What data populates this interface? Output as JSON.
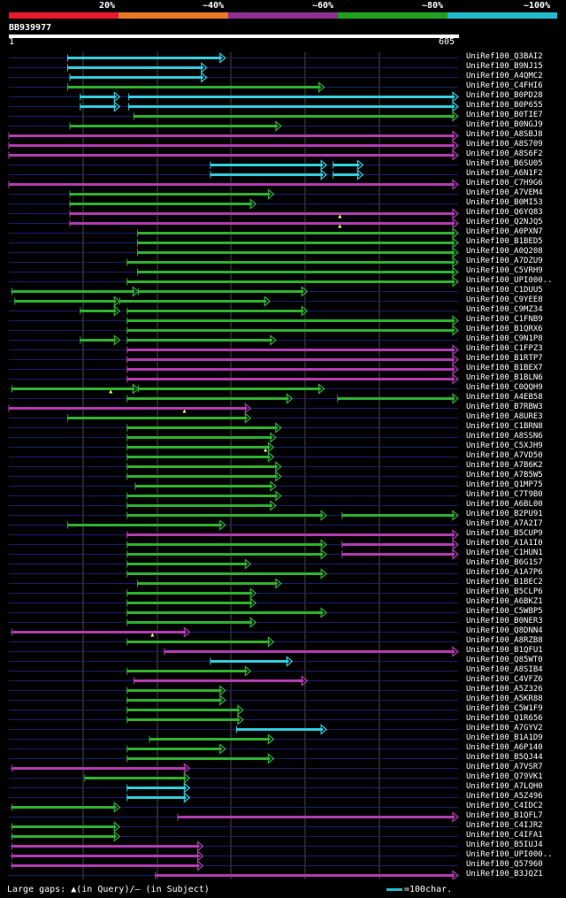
{
  "query_id": "BB939977",
  "legend": {
    "labels": [
      "20%",
      "~40%",
      "~60%",
      "~80%",
      "~100%"
    ],
    "colors": [
      "#e8192c",
      "#e87722",
      "#8f2f8f",
      "#20a020",
      "#22bbcc"
    ]
  },
  "ruler": {
    "start": "1",
    "end": "605"
  },
  "footer": {
    "gaps_text": "Large gaps: ▲(in Query)/— (in Subject)",
    "scale_text": "=100char."
  },
  "colors": {
    "green": "#30b030",
    "cyan": "#33ccdd",
    "magenta": "#b03cb0",
    "navy": "#1a1f6a",
    "grid": "#4a4a4a"
  },
  "chart_data": {
    "type": "alignment",
    "query_length": 605,
    "rows": [
      {
        "label": "UniRef100_Q3BAI2",
        "color": "cyan",
        "segs": [
          [
            80,
            292
          ]
        ]
      },
      {
        "label": "UniRef100_B9NJ15",
        "color": "cyan",
        "segs": [
          [
            80,
            267
          ]
        ]
      },
      {
        "label": "UniRef100_A4QMC2",
        "color": "cyan",
        "segs": [
          [
            83,
            267
          ]
        ]
      },
      {
        "label": "UniRef100_C4FHI6",
        "color": "green",
        "segs": [
          [
            80,
            425
          ]
        ]
      },
      {
        "label": "UniRef100_B0PD28",
        "color": "cyan",
        "segs": [
          [
            97,
            150
          ],
          [
            162,
            605
          ]
        ]
      },
      {
        "label": "UniRef100_B0P655",
        "color": "cyan",
        "segs": [
          [
            97,
            150
          ],
          [
            162,
            605
          ]
        ]
      },
      {
        "label": "UniRef100_B0TIE7",
        "color": "green",
        "segs": [
          [
            169,
            605
          ]
        ]
      },
      {
        "label": "UniRef100_B0NGJ9",
        "color": "green",
        "segs": [
          [
            83,
            367
          ]
        ]
      },
      {
        "label": "UniRef100_A8SBJ8",
        "color": "magenta",
        "segs": [
          [
            1,
            605
          ]
        ]
      },
      {
        "label": "UniRef100_A8S709",
        "color": "magenta",
        "segs": [
          [
            1,
            605
          ]
        ]
      },
      {
        "label": "UniRef100_A8S6F2",
        "color": "magenta",
        "segs": [
          [
            1,
            605
          ]
        ]
      },
      {
        "label": "UniRef100_B6SU05",
        "color": "cyan",
        "segs": [
          [
            272,
            428
          ],
          [
            437,
            477
          ]
        ]
      },
      {
        "label": "UniRef100_A6N1F2",
        "color": "cyan",
        "segs": [
          [
            272,
            428
          ],
          [
            437,
            477
          ]
        ]
      },
      {
        "label": "UniRef100_C7H9G6",
        "color": "magenta",
        "segs": [
          [
            1,
            605
          ]
        ]
      },
      {
        "label": "UniRef100_A7VEM4",
        "color": "green",
        "segs": [
          [
            83,
            357
          ]
        ]
      },
      {
        "label": "UniRef100_B0MI53",
        "color": "green",
        "segs": [
          [
            83,
            333
          ]
        ]
      },
      {
        "label": "UniRef100_Q6YQ83",
        "color": "magenta",
        "segs": [
          [
            83,
            605
          ]
        ],
        "gap": 446
      },
      {
        "label": "UniRef100_Q2NJQ5",
        "color": "magenta",
        "segs": [
          [
            83,
            605
          ]
        ],
        "gap": 446
      },
      {
        "label": "UniRef100_A0PXN7",
        "color": "green",
        "segs": [
          [
            174,
            605
          ]
        ]
      },
      {
        "label": "UniRef100_B1BED5",
        "color": "green",
        "segs": [
          [
            174,
            605
          ]
        ]
      },
      {
        "label": "UniRef100_A0Q208",
        "color": "green",
        "segs": [
          [
            174,
            605
          ]
        ]
      },
      {
        "label": "UniRef100_A7DZU9",
        "color": "green",
        "segs": [
          [
            160,
            605
          ]
        ]
      },
      {
        "label": "UniRef100_C5VRH9",
        "color": "green",
        "segs": [
          [
            174,
            605
          ]
        ]
      },
      {
        "label": "UniRef100_UPI000..",
        "color": "green",
        "segs": [
          [
            160,
            605
          ]
        ]
      },
      {
        "label": "UniRef100_C1DUU5",
        "color": "green",
        "segs": [
          [
            5,
            175
          ],
          [
            175,
            402
          ]
        ]
      },
      {
        "label": "UniRef100_C9YEE8",
        "color": "green",
        "segs": [
          [
            9,
            150
          ],
          [
            150,
            352
          ]
        ]
      },
      {
        "label": "UniRef100_C9MZ34",
        "color": "green",
        "segs": [
          [
            97,
            150
          ],
          [
            160,
            402
          ]
        ]
      },
      {
        "label": "UniRef100_C1FNB9",
        "color": "green",
        "segs": [
          [
            160,
            605
          ]
        ]
      },
      {
        "label": "UniRef100_B1QRX6",
        "color": "green",
        "segs": [
          [
            160,
            605
          ]
        ]
      },
      {
        "label": "UniRef100_C9N1P8",
        "color": "green",
        "segs": [
          [
            97,
            150
          ],
          [
            160,
            360
          ]
        ]
      },
      {
        "label": "UniRef100_C1FPZ3",
        "color": "magenta",
        "segs": [
          [
            160,
            605
          ]
        ]
      },
      {
        "label": "UniRef100_B1RTP7",
        "color": "magenta",
        "segs": [
          [
            160,
            605
          ]
        ]
      },
      {
        "label": "UniRef100_B1BEX7",
        "color": "magenta",
        "segs": [
          [
            160,
            605
          ]
        ]
      },
      {
        "label": "UniRef100_B1BLN6",
        "color": "magenta",
        "segs": [
          [
            160,
            605
          ]
        ]
      },
      {
        "label": "UniRef100_C0QQH9",
        "color": "green",
        "segs": [
          [
            5,
            175
          ],
          [
            175,
            425
          ]
        ],
        "gap": 138
      },
      {
        "label": "UniRef100_A4EB58",
        "color": "green",
        "segs": [
          [
            160,
            382
          ],
          [
            443,
            605
          ]
        ]
      },
      {
        "label": "UniRef100_B7RBW3",
        "color": "magenta",
        "segs": [
          [
            1,
            326
          ]
        ],
        "gap": 237
      },
      {
        "label": "UniRef100_A8URE3",
        "color": "green",
        "segs": [
          [
            80,
            326
          ]
        ]
      },
      {
        "label": "UniRef100_C1BRN8",
        "color": "green",
        "segs": [
          [
            160,
            367
          ]
        ]
      },
      {
        "label": "UniRef100_A8SSN6",
        "color": "green",
        "segs": [
          [
            160,
            360
          ]
        ]
      },
      {
        "label": "UniRef100_C5XJH9",
        "color": "green",
        "segs": [
          [
            160,
            357
          ]
        ],
        "gap": 346
      },
      {
        "label": "UniRef100_A7VD50",
        "color": "green",
        "segs": [
          [
            160,
            357
          ]
        ]
      },
      {
        "label": "UniRef100_A7B6K2",
        "color": "green",
        "segs": [
          [
            160,
            367
          ]
        ]
      },
      {
        "label": "UniRef100_A7B5W5",
        "color": "green",
        "segs": [
          [
            160,
            367
          ]
        ]
      },
      {
        "label": "UniRef100_Q1MP75",
        "color": "green",
        "segs": [
          [
            171,
            360
          ]
        ]
      },
      {
        "label": "UniRef100_C7T9B0",
        "color": "green",
        "segs": [
          [
            160,
            367
          ]
        ]
      },
      {
        "label": "UniRef100_A6BL00",
        "color": "green",
        "segs": [
          [
            160,
            360
          ]
        ]
      },
      {
        "label": "UniRef100_B2PU91",
        "color": "green",
        "segs": [
          [
            160,
            428
          ],
          [
            449,
            605
          ]
        ]
      },
      {
        "label": "UniRef100_A7A2I7",
        "color": "green",
        "segs": [
          [
            80,
            292
          ]
        ]
      },
      {
        "label": "UniRef100_B5CUP9",
        "color": "magenta",
        "segs": [
          [
            160,
            605
          ]
        ]
      },
      {
        "label": "UniRef100_A1A1I0",
        "color": "green",
        "segs": [
          [
            160,
            428
          ],
          [
            449,
            605
          ]
        ],
        "mag_tail": true
      },
      {
        "label": "UniRef100_C1HUN1",
        "color": "green",
        "segs": [
          [
            160,
            428
          ],
          [
            449,
            605
          ]
        ],
        "mag_tail": true
      },
      {
        "label": "UniRef100_B6G1S7",
        "color": "green",
        "segs": [
          [
            160,
            326
          ]
        ]
      },
      {
        "label": "UniRef100_A1A7P6",
        "color": "green",
        "segs": [
          [
            160,
            428
          ]
        ]
      },
      {
        "label": "UniRef100_B1BEC2",
        "color": "green",
        "segs": [
          [
            174,
            367
          ]
        ]
      },
      {
        "label": "UniRef100_B5CLP6",
        "color": "green",
        "segs": [
          [
            160,
            333
          ]
        ]
      },
      {
        "label": "UniRef100_A6BKZ1",
        "color": "green",
        "segs": [
          [
            160,
            333
          ]
        ]
      },
      {
        "label": "UniRef100_C5WBP5",
        "color": "green",
        "segs": [
          [
            160,
            428
          ]
        ]
      },
      {
        "label": "UniRef100_B0NER3",
        "color": "green",
        "segs": [
          [
            160,
            333
          ]
        ]
      },
      {
        "label": "UniRef100_Q8DNN4",
        "color": "magenta",
        "segs": [
          [
            5,
            244
          ]
        ],
        "gap": 194
      },
      {
        "label": "UniRef100_A8RZB8",
        "color": "green",
        "segs": [
          [
            160,
            357
          ]
        ]
      },
      {
        "label": "UniRef100_B1QFU1",
        "color": "magenta",
        "segs": [
          [
            210,
            605
          ]
        ]
      },
      {
        "label": "UniRef100_Q85WT0",
        "color": "cyan",
        "segs": [
          [
            272,
            382
          ]
        ]
      },
      {
        "label": "UniRef100_A8SIB4",
        "color": "green",
        "segs": [
          [
            160,
            326
          ]
        ]
      },
      {
        "label": "UniRef100_C4VFZ6",
        "color": "magenta",
        "segs": [
          [
            169,
            402
          ]
        ]
      },
      {
        "label": "UniRef100_A5Z326",
        "color": "green",
        "segs": [
          [
            160,
            292
          ]
        ]
      },
      {
        "label": "UniRef100_A5KR88",
        "color": "green",
        "segs": [
          [
            160,
            292
          ]
        ]
      },
      {
        "label": "UniRef100_C5W1F9",
        "color": "green",
        "segs": [
          [
            160,
            316
          ]
        ]
      },
      {
        "label": "UniRef100_Q1R656",
        "color": "green",
        "segs": [
          [
            160,
            316
          ]
        ]
      },
      {
        "label": "UniRef100_A7GYV2",
        "color": "cyan",
        "segs": [
          [
            307,
            428
          ]
        ]
      },
      {
        "label": "UniRef100_B1A1D9",
        "color": "green",
        "segs": [
          [
            190,
            357
          ]
        ]
      },
      {
        "label": "UniRef100_A6P140",
        "color": "green",
        "segs": [
          [
            160,
            292
          ]
        ]
      },
      {
        "label": "UniRef100_B5QJ44",
        "color": "green",
        "segs": [
          [
            160,
            357
          ]
        ]
      },
      {
        "label": "UniRef100_A7VSR7",
        "color": "magenta",
        "segs": [
          [
            5,
            244
          ]
        ]
      },
      {
        "label": "UniRef100_Q79VK1",
        "color": "green",
        "segs": [
          [
            103,
            244
          ]
        ]
      },
      {
        "label": "UniRef100_A7LQH0",
        "color": "cyan",
        "segs": [
          [
            160,
            244
          ]
        ]
      },
      {
        "label": "UniRef100_A5Z496",
        "color": "cyan",
        "segs": [
          [
            160,
            244
          ]
        ]
      },
      {
        "label": "UniRef100_C4IDC2",
        "color": "green",
        "segs": [
          [
            5,
            150
          ]
        ]
      },
      {
        "label": "UniRef100_B1QFL7",
        "color": "magenta",
        "segs": [
          [
            228,
            605
          ]
        ]
      },
      {
        "label": "UniRef100_C4IJR2",
        "color": "green",
        "segs": [
          [
            5,
            150
          ]
        ]
      },
      {
        "label": "UniRef100_C4IFA1",
        "color": "green",
        "segs": [
          [
            5,
            150
          ]
        ]
      },
      {
        "label": "UniRef100_B5IUJ4",
        "color": "magenta",
        "segs": [
          [
            5,
            262
          ]
        ]
      },
      {
        "label": "UniRef100_UPI000..",
        "color": "magenta",
        "segs": [
          [
            5,
            262
          ]
        ]
      },
      {
        "label": "UniRef100_Q57960",
        "color": "magenta",
        "segs": [
          [
            5,
            262
          ]
        ]
      },
      {
        "label": "UniRef100_B3JQZ1",
        "color": "magenta",
        "segs": [
          [
            198,
            605
          ]
        ]
      }
    ]
  }
}
